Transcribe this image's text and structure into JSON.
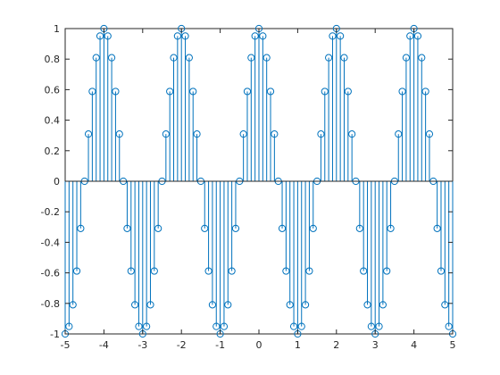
{
  "chart_data": {
    "type": "stem",
    "title": "",
    "xlabel": "",
    "ylabel": "",
    "xlim": [
      -5,
      5
    ],
    "ylim": [
      -1,
      1
    ],
    "x_ticks": [
      -5,
      -4,
      -3,
      -2,
      -1,
      0,
      1,
      2,
      3,
      4,
      5
    ],
    "x_tick_labels": [
      "-5",
      "-4",
      "-3",
      "-2",
      "-1",
      "0",
      "1",
      "2",
      "3",
      "4",
      "5"
    ],
    "y_ticks": [
      -1,
      -0.8,
      -0.6,
      -0.4,
      -0.2,
      0,
      0.2,
      0.4,
      0.6,
      0.8,
      1
    ],
    "y_tick_labels": [
      "-1",
      "-0.8",
      "-0.6",
      "-0.4",
      "-0.2",
      "0",
      "0.2",
      "0.4",
      "0.6",
      "0.8",
      "1"
    ],
    "grid": false,
    "box": true,
    "series": [
      {
        "x": [
          -5,
          -4.9,
          -4.8,
          -4.7,
          -4.6,
          -4.5,
          -4.4,
          -4.3,
          -4.2,
          -4.1,
          -4,
          -3.9,
          -3.8,
          -3.7,
          -3.6,
          -3.5,
          -3.4,
          -3.3,
          -3.2,
          -3.1,
          -3,
          -2.9,
          -2.8,
          -2.7,
          -2.6,
          -2.5,
          -2.4,
          -2.3,
          -2.2,
          -2.1,
          -2,
          -1.9,
          -1.8,
          -1.7,
          -1.6,
          -1.5,
          -1.4,
          -1.3,
          -1.2,
          -1.1,
          -1,
          -0.9,
          -0.8,
          -0.7,
          -0.6,
          -0.5,
          -0.4,
          -0.3,
          -0.2,
          -0.1,
          0,
          0.1,
          0.2,
          0.3,
          0.4,
          0.5,
          0.6,
          0.7,
          0.8,
          0.9,
          1,
          1.1,
          1.2,
          1.3,
          1.4,
          1.5,
          1.6,
          1.7,
          1.8,
          1.9,
          2,
          2.1,
          2.2,
          2.3,
          2.4,
          2.5,
          2.6,
          2.7,
          2.8,
          2.9,
          3,
          3.1,
          3.2,
          3.3,
          3.4,
          3.5,
          3.6,
          3.7,
          3.8,
          3.9,
          4,
          4.1,
          4.2,
          4.3,
          4.4,
          4.5,
          4.6,
          4.7,
          4.8,
          4.9,
          5
        ],
        "y": [
          -1,
          -0.951,
          -0.809,
          -0.588,
          -0.309,
          0,
          0.309,
          0.588,
          0.809,
          0.951,
          1,
          0.951,
          0.809,
          0.588,
          0.309,
          0,
          -0.309,
          -0.588,
          -0.809,
          -0.951,
          -1,
          -0.951,
          -0.809,
          -0.588,
          -0.309,
          0,
          0.309,
          0.588,
          0.809,
          0.951,
          1,
          0.951,
          0.809,
          0.588,
          0.309,
          0,
          -0.309,
          -0.588,
          -0.809,
          -0.951,
          -1,
          -0.951,
          -0.809,
          -0.588,
          -0.309,
          0,
          0.309,
          0.588,
          0.809,
          0.951,
          1,
          0.951,
          0.809,
          0.588,
          0.309,
          0,
          -0.309,
          -0.588,
          -0.809,
          -0.951,
          -1,
          -0.951,
          -0.809,
          -0.588,
          -0.309,
          0,
          0.309,
          0.588,
          0.809,
          0.951,
          1,
          0.951,
          0.809,
          0.588,
          0.309,
          0,
          -0.309,
          -0.588,
          -0.809,
          -0.951,
          -1,
          -0.951,
          -0.809,
          -0.588,
          -0.309,
          0,
          0.309,
          0.588,
          0.809,
          0.951,
          1,
          0.951,
          0.809,
          0.588,
          0.309,
          0,
          -0.309,
          -0.588,
          -0.809,
          -0.951,
          -1
        ],
        "color": "#0072BD",
        "marker": "circle-open"
      }
    ]
  },
  "colors": {
    "stem": "#0072BD",
    "axes": "#262626",
    "background": "#ffffff"
  }
}
